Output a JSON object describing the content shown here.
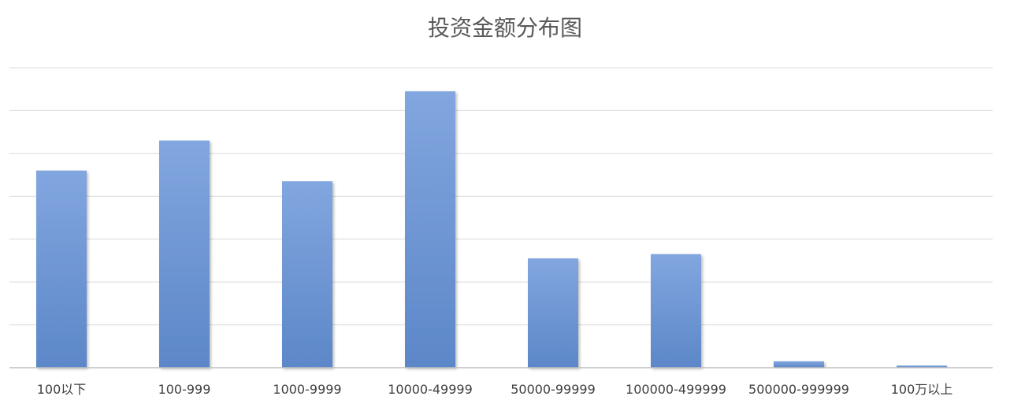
{
  "chart_data": {
    "type": "bar",
    "title": "投资金额分布图",
    "xlabel": "",
    "ylabel": "",
    "categories": [
      "100以下",
      "100-999",
      "1000-9999",
      "10000-49999",
      "50000-99999",
      "100000-499999",
      "500000-999999",
      "100万以上"
    ],
    "values": [
      4.6,
      5.3,
      4.35,
      6.45,
      2.55,
      2.65,
      0.15,
      0.05
    ],
    "ylim": [
      0,
      7
    ],
    "y_ticks_shown": false,
    "grid": true,
    "legend": "none",
    "bar_color": "#6f98d6",
    "bar_color_top": "#82a6df",
    "bar_color_bottom": "#5c87c8"
  }
}
